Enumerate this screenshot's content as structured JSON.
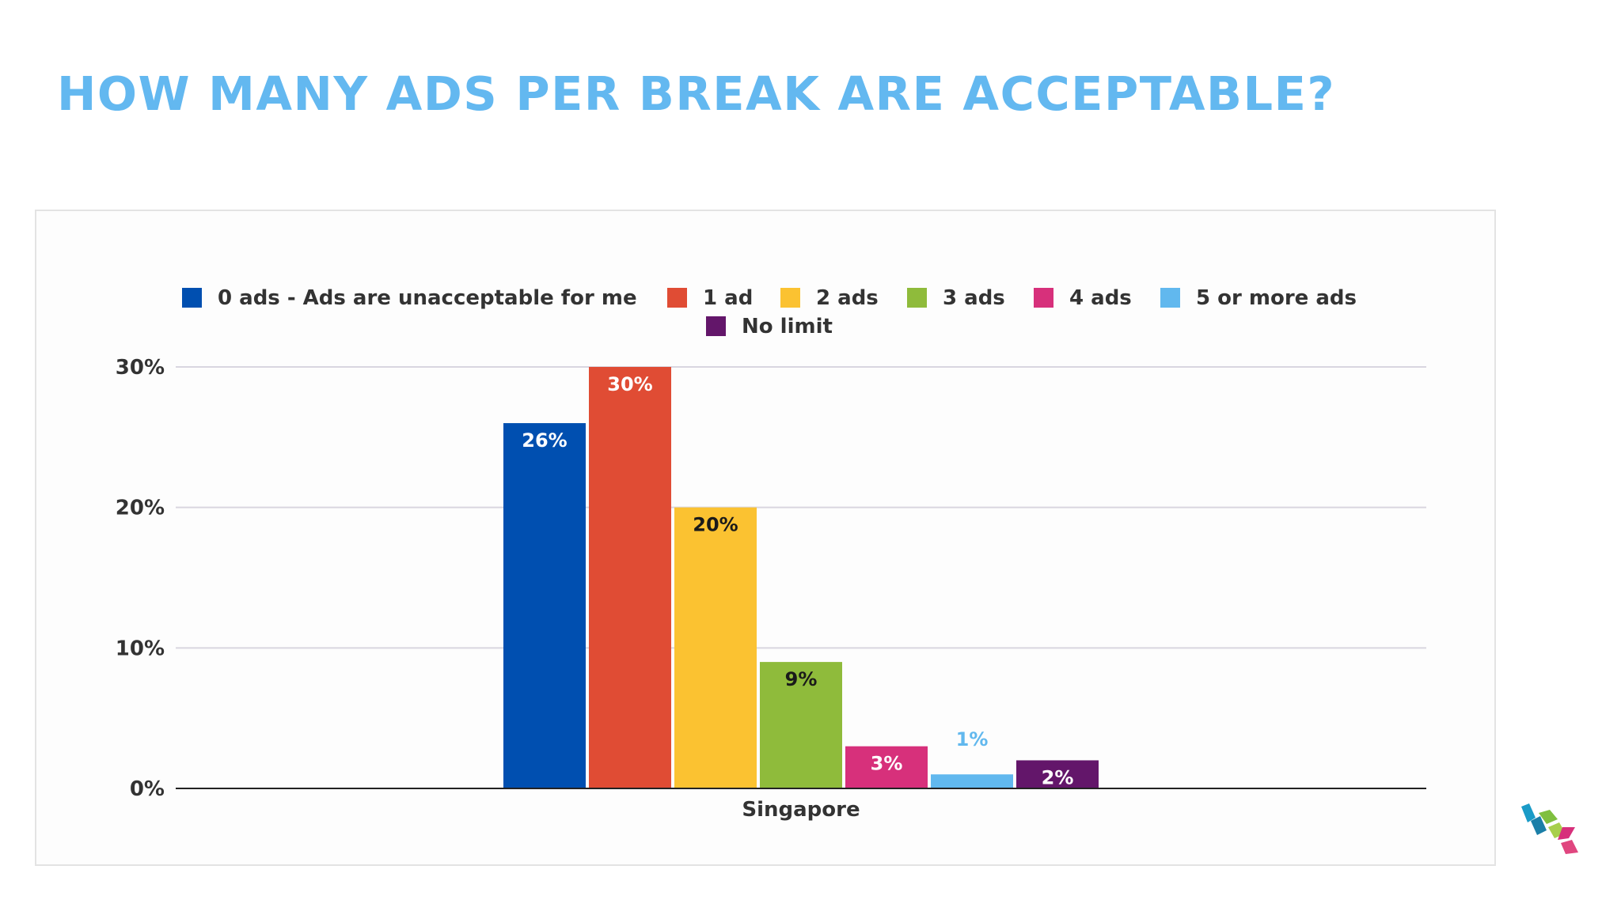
{
  "slide": {
    "title": "HOW MANY ADS PER BREAK ARE ACCEPTABLE?",
    "logo": "stacked-chevron-logo-icon"
  },
  "chart_data": {
    "type": "bar",
    "categories": [
      "Singapore"
    ],
    "series": [
      {
        "name": "0 ads - Ads are unacceptable for me",
        "values": [
          26
        ],
        "label": "26%",
        "color": "#004fb0"
      },
      {
        "name": "1 ad",
        "values": [
          30
        ],
        "label": "30%",
        "color": "#e04c34"
      },
      {
        "name": "2 ads",
        "values": [
          20
        ],
        "label": "20%",
        "color": "#fbc231"
      },
      {
        "name": "3 ads",
        "values": [
          9
        ],
        "label": "9%",
        "color": "#8fbb3b"
      },
      {
        "name": "4 ads",
        "values": [
          3
        ],
        "label": "3%",
        "color": "#d7307b"
      },
      {
        "name": "5 or more ads",
        "values": [
          1
        ],
        "label": "1%",
        "color": "#61b8ee"
      },
      {
        "name": "No limit",
        "values": [
          2
        ],
        "label": "2%",
        "color": "#63166a"
      }
    ],
    "yticks": [
      "0%",
      "10%",
      "20%",
      "30%"
    ],
    "ytick_values": [
      0,
      10,
      20,
      30
    ],
    "ylim": [
      0,
      30
    ],
    "xlabel": "",
    "ylabel": "",
    "grid": true,
    "legend_position": "top"
  }
}
